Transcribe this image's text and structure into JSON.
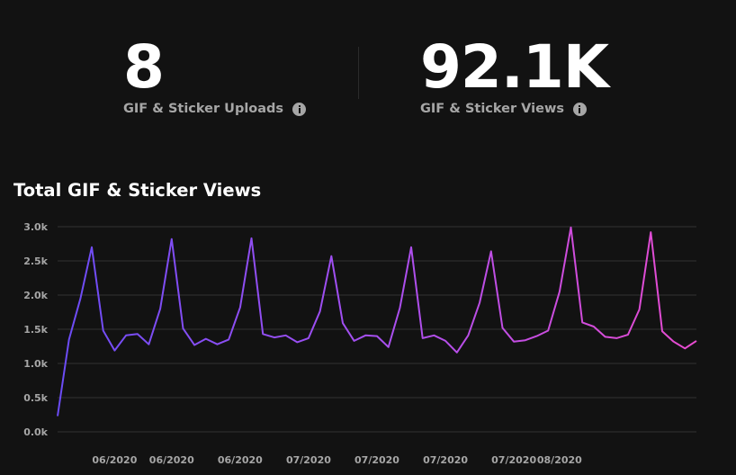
{
  "stats": {
    "uploads": {
      "value": "8",
      "label": "GIF & Sticker Uploads",
      "icon": "info-icon"
    },
    "views": {
      "value": "92.1K",
      "label": "GIF & Sticker Views",
      "icon": "info-icon"
    }
  },
  "chart_data": {
    "type": "line",
    "title": "Total GIF & Sticker Views",
    "xlabel": "",
    "ylabel": "",
    "ylim": [
      0,
      3000
    ],
    "y_ticks": [
      0,
      500,
      1000,
      1500,
      2000,
      2500,
      3000
    ],
    "y_tick_labels": [
      "0.0k",
      "0.5k",
      "1.0k",
      "1.5k",
      "2.0k",
      "2.5k",
      "3.0k"
    ],
    "x_tick_labels": [
      "06/2020",
      "06/2020",
      "06/2020",
      "07/2020",
      "07/2020",
      "07/2020",
      "07/2020",
      "08/2020"
    ],
    "x_tick_indices": [
      5,
      10,
      16,
      22,
      28,
      34,
      40,
      44
    ],
    "grid": true,
    "legend": "none",
    "line_gradient": [
      "#6b4cf6",
      "#a74ff0",
      "#e84bd0"
    ],
    "values": [
      230,
      1350,
      1950,
      2700,
      1480,
      1190,
      1410,
      1430,
      1280,
      1800,
      2820,
      1510,
      1270,
      1360,
      1280,
      1350,
      1820,
      2830,
      1430,
      1380,
      1410,
      1310,
      1370,
      1760,
      2570,
      1590,
      1330,
      1410,
      1400,
      1240,
      1810,
      2700,
      1370,
      1410,
      1330,
      1160,
      1410,
      1890,
      2640,
      1520,
      1320,
      1340,
      1400,
      1480,
      2050,
      2990,
      1600,
      1540,
      1390,
      1370,
      1420,
      1790,
      2920,
      1470,
      1320,
      1220,
      1330
    ]
  }
}
